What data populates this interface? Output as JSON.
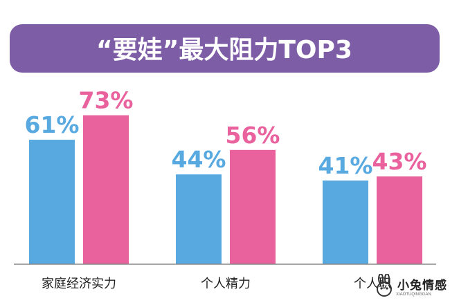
{
  "chart_data": {
    "type": "bar",
    "title": "“要娃”最大阻力TOP3",
    "categories": [
      "家庭经济实力",
      "个人精力",
      "个人职"
    ],
    "series": [
      {
        "values": [
          61,
          44,
          41
        ]
      },
      {
        "values": [
          73,
          56,
          43
        ]
      }
    ],
    "value_labels": [
      [
        "61%",
        "44%",
        "41%"
      ],
      [
        "73%",
        "56%",
        "43%"
      ]
    ],
    "ylim": [
      0,
      100
    ],
    "grid": false,
    "colors": {
      "title_band": "#7d5ea6",
      "series_1": "#57a9e0",
      "series_2": "#e9629d",
      "baseline": "#888888"
    }
  },
  "watermark": {
    "name": "小兔情感",
    "sub": "XIAOTUQINGGAN"
  }
}
